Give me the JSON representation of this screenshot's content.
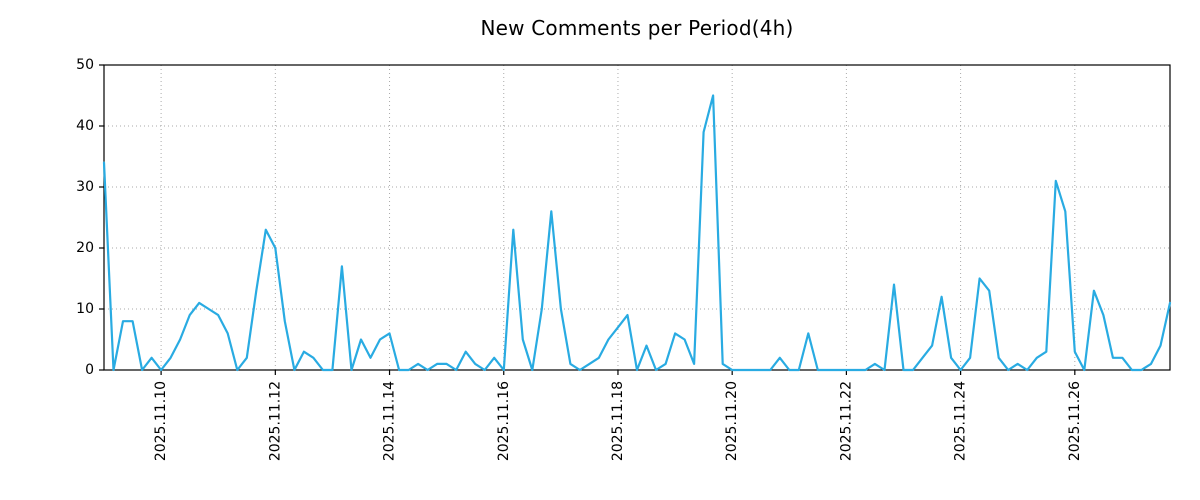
{
  "chart_data": {
    "type": "line",
    "title": "New Comments per Period(4h)",
    "xlabel": "",
    "ylabel": "",
    "x_start": "2025.11.09 00:00",
    "x_step_hours": 4,
    "ylim": [
      0,
      50
    ],
    "y_ticks": [
      0,
      10,
      20,
      30,
      40,
      50
    ],
    "x_tick_labels": [
      "2025.11.10",
      "2025.11.12",
      "2025.11.14",
      "2025.11.16",
      "2025.11.18",
      "2025.11.20",
      "2025.11.22",
      "2025.11.24",
      "2025.11.26"
    ],
    "x_tick_indices": [
      6,
      18,
      30,
      42,
      54,
      66,
      78,
      90,
      102
    ],
    "grid": true,
    "grid_style": "dotted",
    "grid_color": "#aaaaaa",
    "line_color": "#29abe2",
    "axis_color": "#000000",
    "background_color": "#ffffff",
    "legend": null,
    "values": [
      34,
      0,
      8,
      8,
      0,
      2,
      0,
      2,
      5,
      9,
      11,
      10,
      9,
      6,
      0,
      2,
      13,
      23,
      20,
      8,
      0,
      3,
      2,
      0,
      0,
      17,
      0,
      5,
      2,
      5,
      6,
      0,
      0,
      1,
      0,
      1,
      1,
      0,
      3,
      1,
      0,
      2,
      0,
      23,
      5,
      0,
      10,
      26,
      10,
      1,
      0,
      1,
      2,
      5,
      7,
      9,
      0,
      4,
      0,
      1,
      6,
      5,
      1,
      39,
      45,
      1,
      0,
      0,
      0,
      0,
      0,
      2,
      0,
      0,
      6,
      0,
      0,
      0,
      0,
      0,
      0,
      1,
      0,
      14,
      0,
      0,
      2,
      4,
      12,
      2,
      0,
      2,
      15,
      13,
      2,
      0,
      1,
      0,
      2,
      3,
      31,
      26,
      3,
      0,
      13,
      9,
      2,
      2,
      0,
      0,
      1,
      4,
      11
    ]
  }
}
